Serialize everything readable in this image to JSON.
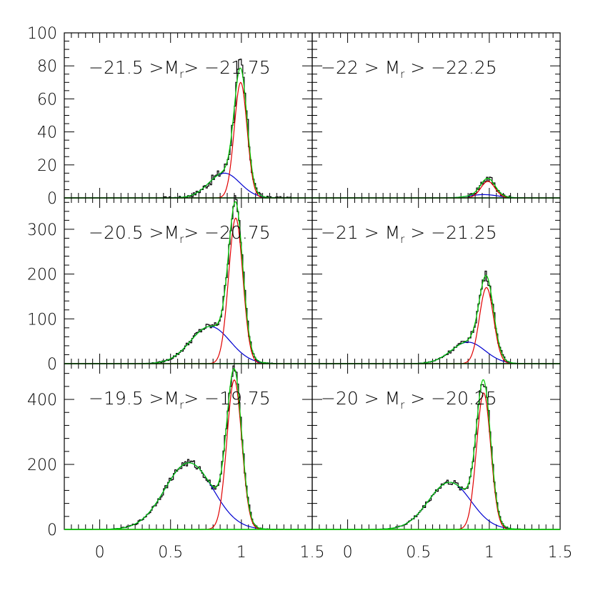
{
  "chart_data": {
    "type": "line",
    "layout": "3 rows x 2 columns, shared x-axis",
    "xlim": [
      -0.25,
      1.5
    ],
    "x_ticks": [
      "0",
      "0.5",
      "1",
      "1.5"
    ],
    "colors": {
      "histogram": "#000000",
      "red_component": "#e00000",
      "blue_component": "#0000d0",
      "total_fit": "#00cc00",
      "baseline": "#00cc00"
    },
    "panels": [
      {
        "id": "p1",
        "label": {
          "pre": "−21.5 >M",
          "sub": "r",
          "post": "> −21.75"
        },
        "ylim": [
          0,
          100
        ],
        "y_ticks": [
          "0",
          "20",
          "40",
          "60",
          "80",
          "100"
        ],
        "red": {
          "amp": 70,
          "mu": 0.995,
          "sigma": 0.045
        },
        "blue": {
          "amp": 15,
          "mu": 0.88,
          "sigma": 0.11
        },
        "hist_range": [
          0.45,
          1.35
        ]
      },
      {
        "id": "p2",
        "label": {
          "pre": "−22 > M",
          "sub": "r",
          "post": " > −22.25"
        },
        "ylim": [
          0,
          100
        ],
        "y_ticks": [],
        "red": {
          "amp": 10,
          "mu": 0.99,
          "sigma": 0.05
        },
        "blue": {
          "amp": 2,
          "mu": 0.96,
          "sigma": 0.1
        },
        "hist_range": [
          0.85,
          1.15
        ]
      },
      {
        "id": "p3",
        "label": {
          "pre": "−20.5 >M",
          "sub": "r",
          "post": "> −20.75"
        },
        "ylim": [
          0,
          370
        ],
        "y_ticks": [
          "0",
          "100",
          "200",
          "300"
        ],
        "red": {
          "amp": 325,
          "mu": 0.96,
          "sigma": 0.05
        },
        "blue": {
          "amp": 83,
          "mu": 0.78,
          "sigma": 0.14
        },
        "hist_range": [
          0.3,
          1.25
        ]
      },
      {
        "id": "p4",
        "label": {
          "pre": "−21 > M",
          "sub": "r",
          "post": " > −21.25"
        },
        "ylim": [
          0,
          370
        ],
        "y_ticks": [],
        "red": {
          "amp": 170,
          "mu": 0.98,
          "sigma": 0.05
        },
        "blue": {
          "amp": 48,
          "mu": 0.85,
          "sigma": 0.12
        },
        "hist_range": [
          0.5,
          1.15
        ]
      },
      {
        "id": "p5",
        "label": {
          "pre": "−19.5 >M",
          "sub": "r",
          "post": "> −19.75"
        },
        "ylim": [
          0,
          510
        ],
        "y_ticks": [
          "0",
          "200",
          "400"
        ],
        "red": {
          "amp": 460,
          "mu": 0.95,
          "sigma": 0.052
        },
        "blue": {
          "amp": 205,
          "mu": 0.63,
          "sigma": 0.17
        },
        "hist_range": [
          0.1,
          1.3
        ]
      },
      {
        "id": "p6",
        "label": {
          "pre": "−20 > M",
          "sub": "r",
          "post": " > −20.25"
        },
        "ylim": [
          0,
          510
        ],
        "y_ticks": [],
        "red": {
          "amp": 420,
          "mu": 0.96,
          "sigma": 0.05
        },
        "blue": {
          "amp": 145,
          "mu": 0.72,
          "sigma": 0.15
        },
        "hist_range": [
          0.2,
          1.3
        ]
      }
    ]
  }
}
